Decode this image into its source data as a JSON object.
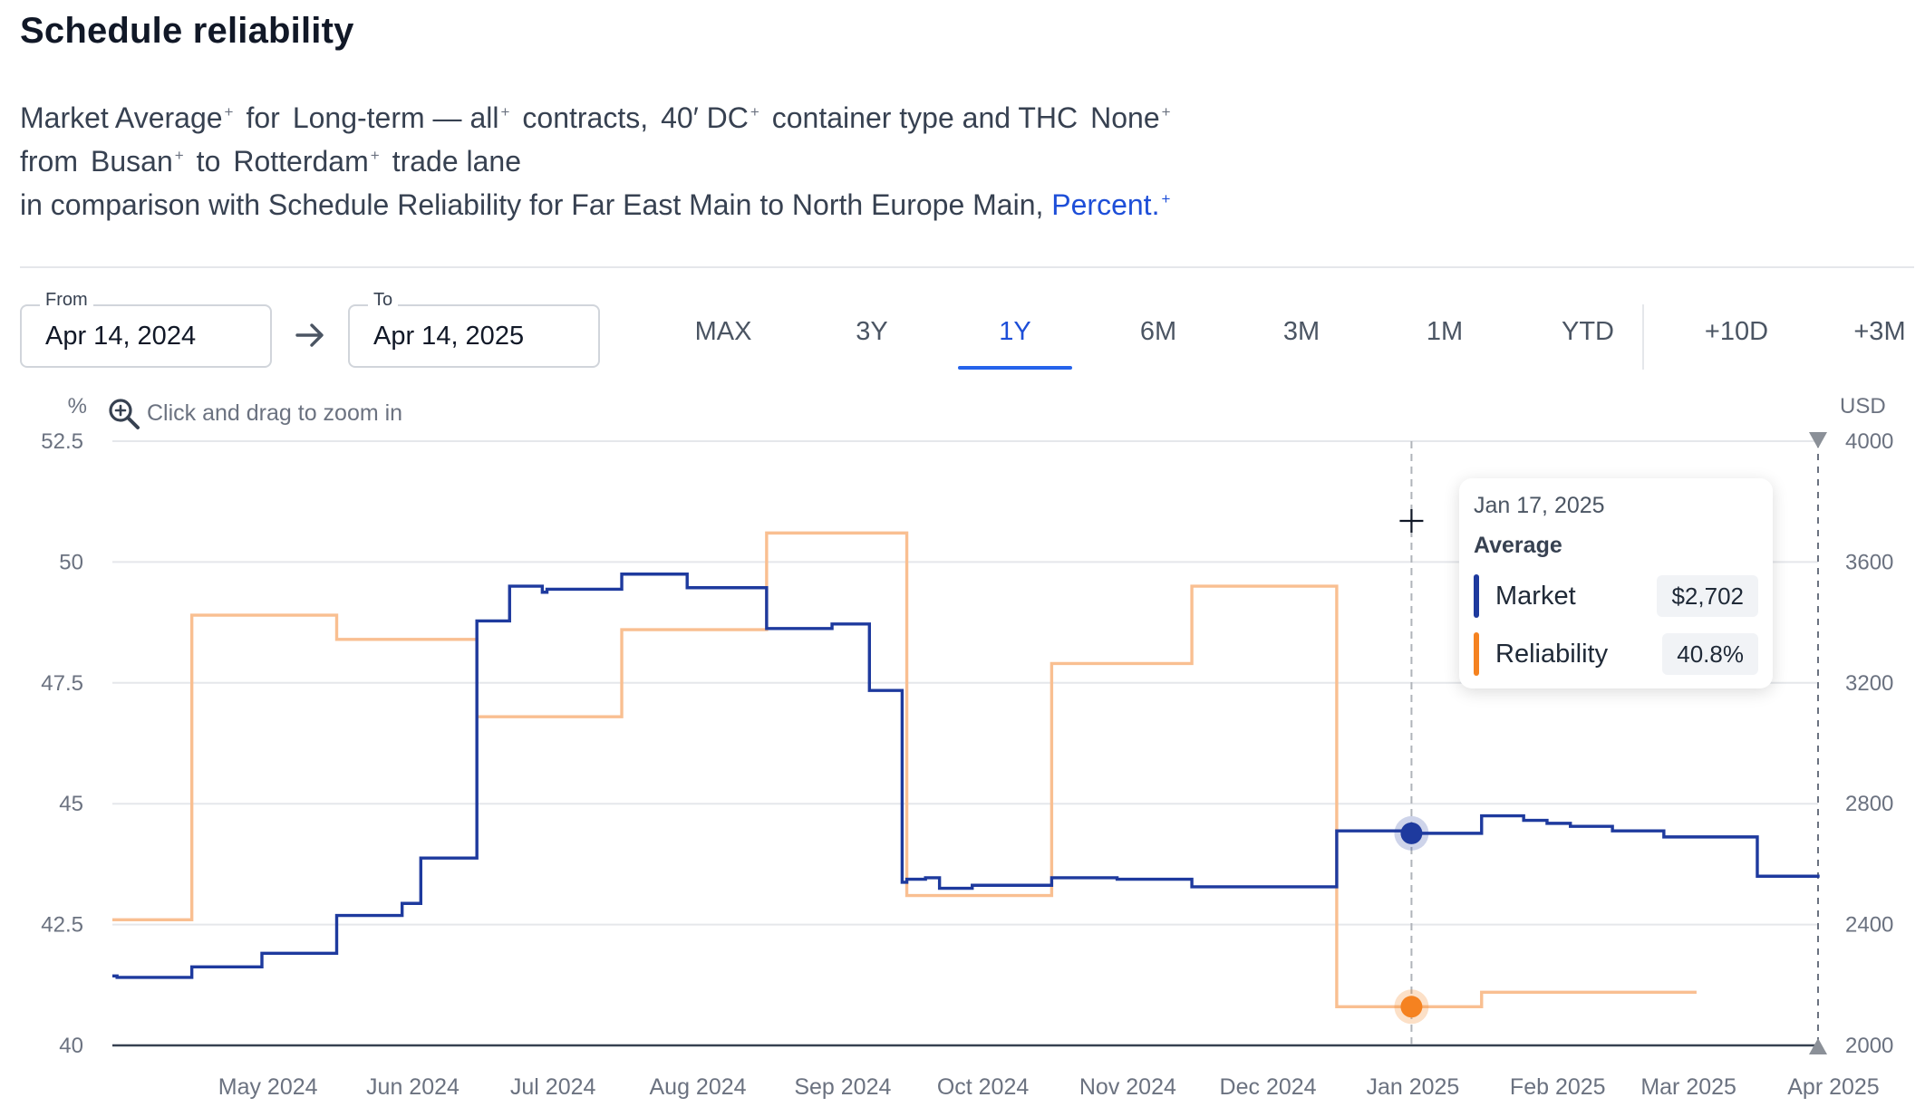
{
  "header": {
    "title": "Schedule reliability"
  },
  "description": {
    "line1": [
      {
        "text": "Market Average",
        "plus": "+"
      },
      {
        "text": "for",
        "plus": ""
      },
      {
        "text": "Long-term — all",
        "plus": "+"
      },
      {
        "text": "contracts,",
        "plus": ""
      },
      {
        "text": "40′ DC",
        "plus": "+"
      },
      {
        "text": "container type and THC",
        "plus": ""
      },
      {
        "text": "None",
        "plus": "+"
      }
    ],
    "line2": [
      {
        "text": "from",
        "plus": ""
      },
      {
        "text": "Busan",
        "plus": "+"
      },
      {
        "text": "to",
        "plus": ""
      },
      {
        "text": "Rotterdam",
        "plus": "+"
      },
      {
        "text": "trade lane",
        "plus": ""
      }
    ],
    "line3_text": "in comparison with Schedule Reliability for Far East Main to North Europe Main,",
    "line3_link": "Percent.",
    "line3_plus": "+"
  },
  "date_range": {
    "from_label": "From",
    "from_value": "Apr 14, 2024",
    "to_label": "To",
    "to_value": "Apr 14, 2025"
  },
  "range_buttons": [
    "MAX",
    "3Y",
    "1Y",
    "6M",
    "3M",
    "1M",
    "YTD",
    "+10D",
    "+3M"
  ],
  "active_range": "1Y",
  "zoom_hint": "Click and drag to zoom in",
  "icons": {
    "arrow": "arrow-right-icon",
    "zoom": "zoom-in-icon",
    "crosshair": "crosshair-icon",
    "range_end": "triangle-marker-icon"
  },
  "colors": {
    "market": "#1e3a9e",
    "reliability": "#f9bf91",
    "reliability_marker": "#f58220",
    "accent": "#2563eb",
    "grid": "#e5e7eb",
    "axis": "#374151"
  },
  "tooltip": {
    "date": "Jan 17, 2025",
    "heading": "Average",
    "rows": [
      {
        "name": "Market",
        "value": "$2,702",
        "color": "#1e3a9e"
      },
      {
        "name": "Reliability",
        "value": "40.8%",
        "color": "#f58220"
      }
    ]
  },
  "chart_data": {
    "type": "line",
    "step": true,
    "x_domain": [
      "2024-04-14",
      "2025-04-14"
    ],
    "x_ticks": [
      {
        "label": "May 2024",
        "date": "2024-05-01"
      },
      {
        "label": "Jun 2024",
        "date": "2024-06-01"
      },
      {
        "label": "Jul 2024",
        "date": "2024-07-01"
      },
      {
        "label": "Aug 2024",
        "date": "2024-08-01"
      },
      {
        "label": "Sep 2024",
        "date": "2024-09-01"
      },
      {
        "label": "Oct 2024",
        "date": "2024-10-01"
      },
      {
        "label": "Nov 2024",
        "date": "2024-11-01"
      },
      {
        "label": "Dec 2024",
        "date": "2024-12-01"
      },
      {
        "label": "Jan 2025",
        "date": "2025-01-01"
      },
      {
        "label": "Feb 2025",
        "date": "2025-02-01"
      },
      {
        "label": "Mar 2025",
        "date": "2025-03-01"
      },
      {
        "label": "Apr 2025",
        "date": "2025-04-01"
      }
    ],
    "y_left": {
      "unit": "%",
      "range": [
        40,
        52.5
      ],
      "ticks": [
        "52.5",
        "50",
        "47.5",
        "45",
        "42.5",
        "40"
      ],
      "tick_values": [
        52.5,
        50,
        47.5,
        45,
        42.5,
        40
      ]
    },
    "y_right": {
      "unit": "USD",
      "range": [
        2000,
        4000
      ],
      "ticks": [
        "4000",
        "3600",
        "3200",
        "2800",
        "2400",
        "2000"
      ],
      "tick_values": [
        4000,
        3600,
        3200,
        2800,
        2400,
        2000
      ]
    },
    "grid": true,
    "hover_date": "2025-01-17",
    "series": [
      {
        "name": "Market",
        "axis": "right",
        "points": [
          [
            "2024-04-14",
            2230
          ],
          [
            "2024-04-15",
            2225
          ],
          [
            "2024-05-01",
            2260
          ],
          [
            "2024-05-16",
            2305
          ],
          [
            "2024-06-01",
            2430
          ],
          [
            "2024-06-15",
            2470
          ],
          [
            "2024-06-19",
            2620
          ],
          [
            "2024-07-01",
            3405
          ],
          [
            "2024-07-08",
            3520
          ],
          [
            "2024-07-15",
            3500
          ],
          [
            "2024-07-16",
            3510
          ],
          [
            "2024-08-01",
            3560
          ],
          [
            "2024-08-15",
            3515
          ],
          [
            "2024-09-01",
            3380
          ],
          [
            "2024-09-15",
            3395
          ],
          [
            "2024-09-23",
            3175
          ],
          [
            "2024-09-30",
            2540
          ],
          [
            "2024-10-01",
            2550
          ],
          [
            "2024-10-05",
            2555
          ],
          [
            "2024-10-08",
            2520
          ],
          [
            "2024-10-15",
            2530
          ],
          [
            "2024-11-01",
            2555
          ],
          [
            "2024-11-15",
            2550
          ],
          [
            "2024-12-01",
            2525
          ],
          [
            "2025-01-01",
            2710
          ],
          [
            "2025-01-17",
            2702
          ],
          [
            "2025-02-01",
            2760
          ],
          [
            "2025-02-10",
            2745
          ],
          [
            "2025-02-15",
            2735
          ],
          [
            "2025-02-20",
            2725
          ],
          [
            "2025-03-01",
            2710
          ],
          [
            "2025-03-12",
            2690
          ],
          [
            "2025-04-01",
            2560
          ],
          [
            "2025-04-14",
            2555
          ]
        ]
      },
      {
        "name": "Reliability",
        "axis": "left",
        "points": [
          [
            "2024-04-14",
            42.6
          ],
          [
            "2024-05-01",
            48.9
          ],
          [
            "2024-06-01",
            48.4
          ],
          [
            "2024-07-01",
            46.8
          ],
          [
            "2024-08-01",
            48.6
          ],
          [
            "2024-09-01",
            50.6
          ],
          [
            "2024-10-01",
            43.1
          ],
          [
            "2024-11-01",
            47.9
          ],
          [
            "2024-12-01",
            49.5
          ],
          [
            "2025-01-01",
            40.8
          ],
          [
            "2025-02-01",
            41.1
          ],
          [
            "2025-03-01",
            41.1
          ]
        ]
      }
    ]
  }
}
